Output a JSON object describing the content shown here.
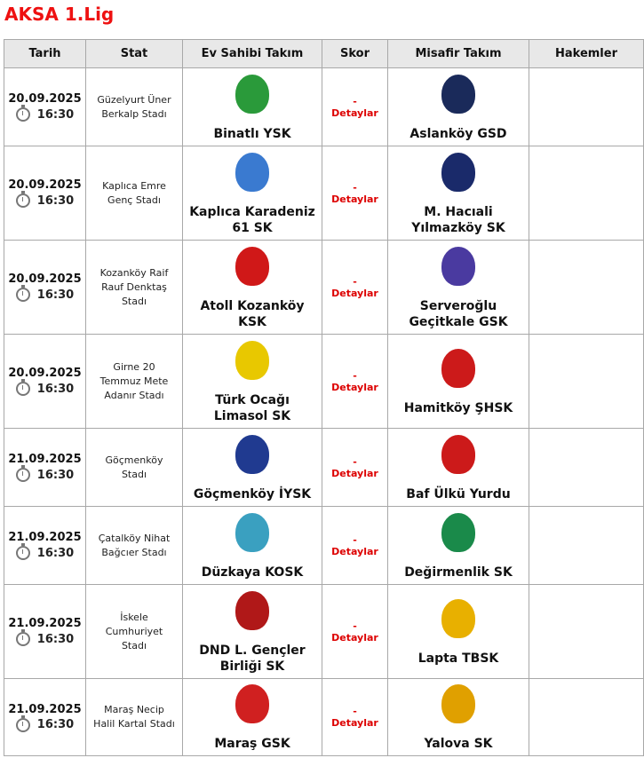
{
  "title": "AKSA 1.Lig",
  "headers": [
    "Tarih",
    "Stat",
    "Ev Sahibi Takım",
    "Skor",
    "Misafir Takım",
    "Hakemler"
  ],
  "details_label": "Detaylar",
  "score_placeholder": "-",
  "matches": [
    {
      "date": "20.09.2025",
      "time": "16:30",
      "stadium": "Güzelyurt Üner Berkalp Stadı",
      "home": "Binatlı YSK",
      "home_logo": "BSY",
      "home_color": "#2a9a3a",
      "away": "Aslanköy GSD",
      "away_logo": "AGSD",
      "away_color": "#1a2a5a"
    },
    {
      "date": "20.09.2025",
      "time": "16:30",
      "stadium": "Kaplıca Emre Genç Stadı",
      "home": "Kaplıca Karadeniz 61 SK",
      "home_logo": "K61",
      "home_color": "#3a7ad0",
      "away": "M. Hacıali Yılmazköy SK",
      "away_logo": "MHY",
      "away_color": "#1a2a6a"
    },
    {
      "date": "20.09.2025",
      "time": "16:30",
      "stadium": "Kozanköy Raif Rauf Denktaş Stadı",
      "home": "Atoll Kozanköy KSK",
      "home_logo": "KSK",
      "home_color": "#d01818",
      "away": "Serveroğlu Geçitkale GSK",
      "away_logo": "GGSK",
      "away_color": "#4a3aa0"
    },
    {
      "date": "20.09.2025",
      "time": "16:30",
      "stadium": "Girne 20 Temmuz Mete Adanır Stadı",
      "home": "Türk Ocağı Limasol SK",
      "home_logo": "TOL",
      "home_color": "#e8c800",
      "away": "Hamitköy ŞHSK",
      "away_logo": "HŞHSK",
      "away_color": "#cc1a1a"
    },
    {
      "date": "21.09.2025",
      "time": "16:30",
      "stadium": "Göçmenköy Stadı",
      "home": "Göçmenköy İYSK",
      "home_logo": "GİYSK",
      "home_color": "#203a90",
      "away": "Baf Ülkü Yurdu",
      "away_logo": "BÜY",
      "away_color": "#cc1a1a"
    },
    {
      "date": "21.09.2025",
      "time": "16:30",
      "stadium": "Çatalköy Nihat Bağcıer Stadı",
      "home": "Düzkaya KOSK",
      "home_logo": "DK",
      "home_color": "#3aa0c0",
      "away": "Değirmenlik SK",
      "away_logo": "DSK",
      "away_color": "#1a8a4a"
    },
    {
      "date": "21.09.2025",
      "time": "16:30",
      "stadium": "İskele Cumhuriyet Stadı",
      "home": "DND L. Gençler Birliği SK",
      "home_logo": "GB",
      "home_color": "#b01818",
      "away": "Lapta TBSK",
      "away_logo": "TBSK",
      "away_color": "#e8b000"
    },
    {
      "date": "21.09.2025",
      "time": "16:30",
      "stadium": "Maraş Necip Halil Kartal Stadı",
      "home": "Maraş GSK",
      "home_logo": "MGSK",
      "home_color": "#d02020",
      "away": "Yalova SK",
      "away_logo": "YSK",
      "away_color": "#e0a000"
    }
  ]
}
